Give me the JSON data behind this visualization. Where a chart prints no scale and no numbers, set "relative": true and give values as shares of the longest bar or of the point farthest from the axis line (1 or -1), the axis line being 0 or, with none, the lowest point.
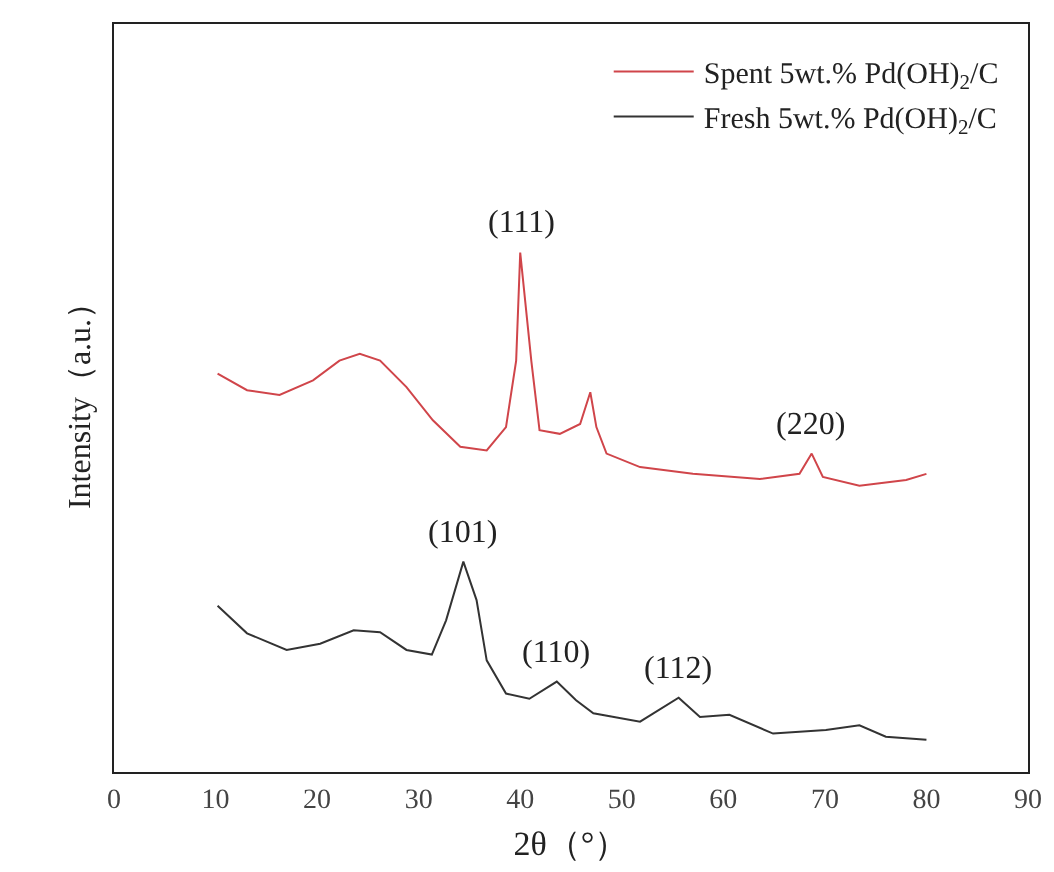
{
  "chart_data": {
    "type": "line",
    "relative": true,
    "xlabel": "2θ（°）",
    "ylabel": "Intensity（a.u.）",
    "xlim": [
      0,
      90
    ],
    "xticks": [
      0,
      10,
      20,
      30,
      40,
      50,
      60,
      70,
      80,
      90
    ],
    "grid": false,
    "legend": "top right",
    "marker": "none",
    "line_style": "solid",
    "annotations": [
      {
        "text": "(111)",
        "x": 40,
        "y": 1.0
      },
      {
        "text": "(220)",
        "x": 68.7,
        "y": 0.613
      },
      {
        "text": "(101)",
        "x": 34.4,
        "y": 0.405
      },
      {
        "text": "(110)",
        "x": 43.6,
        "y": 0.174
      },
      {
        "text": "(112)",
        "x": 55.6,
        "y": 0.143
      }
    ],
    "series": [
      {
        "name": "Spent 5wt.% Pd(OH)$_{2}$/C",
        "color": "#d0454a",
        "x": [
          10.2,
          13.1,
          16.3,
          19.6,
          22.2,
          24.2,
          26.2,
          28.8,
          31.4,
          34.1,
          36.7,
          38.6,
          39.6,
          40.0,
          41.1,
          41.9,
          43.9,
          45.9,
          46.9,
          47.5,
          48.5,
          51.8,
          57.0,
          63.6,
          67.5,
          68.7,
          69.8,
          73.4,
          78.0,
          80.0
        ],
        "values": [
          0.767,
          0.735,
          0.726,
          0.754,
          0.792,
          0.805,
          0.792,
          0.741,
          0.677,
          0.626,
          0.619,
          0.664,
          0.792,
          1.0,
          0.79,
          0.658,
          0.651,
          0.67,
          0.731,
          0.664,
          0.613,
          0.587,
          0.574,
          0.564,
          0.574,
          0.613,
          0.568,
          0.551,
          0.562,
          0.574
        ]
      },
      {
        "name": "Fresh 5wt.% Pd(OH)$_{2}$/C",
        "color": "#333333",
        "x": [
          10.2,
          13.1,
          17.0,
          20.3,
          23.6,
          26.2,
          28.8,
          31.3,
          32.7,
          34.4,
          35.7,
          36.7,
          38.6,
          40.9,
          43.6,
          45.5,
          47.2,
          51.8,
          55.6,
          57.7,
          60.6,
          64.9,
          70.1,
          73.4,
          76.0,
          80.0
        ],
        "values": [
          0.32,
          0.267,
          0.235,
          0.247,
          0.273,
          0.269,
          0.235,
          0.226,
          0.292,
          0.405,
          0.331,
          0.215,
          0.151,
          0.141,
          0.174,
          0.138,
          0.113,
          0.097,
          0.143,
          0.106,
          0.11,
          0.074,
          0.081,
          0.09,
          0.068,
          0.062
        ]
      }
    ]
  }
}
